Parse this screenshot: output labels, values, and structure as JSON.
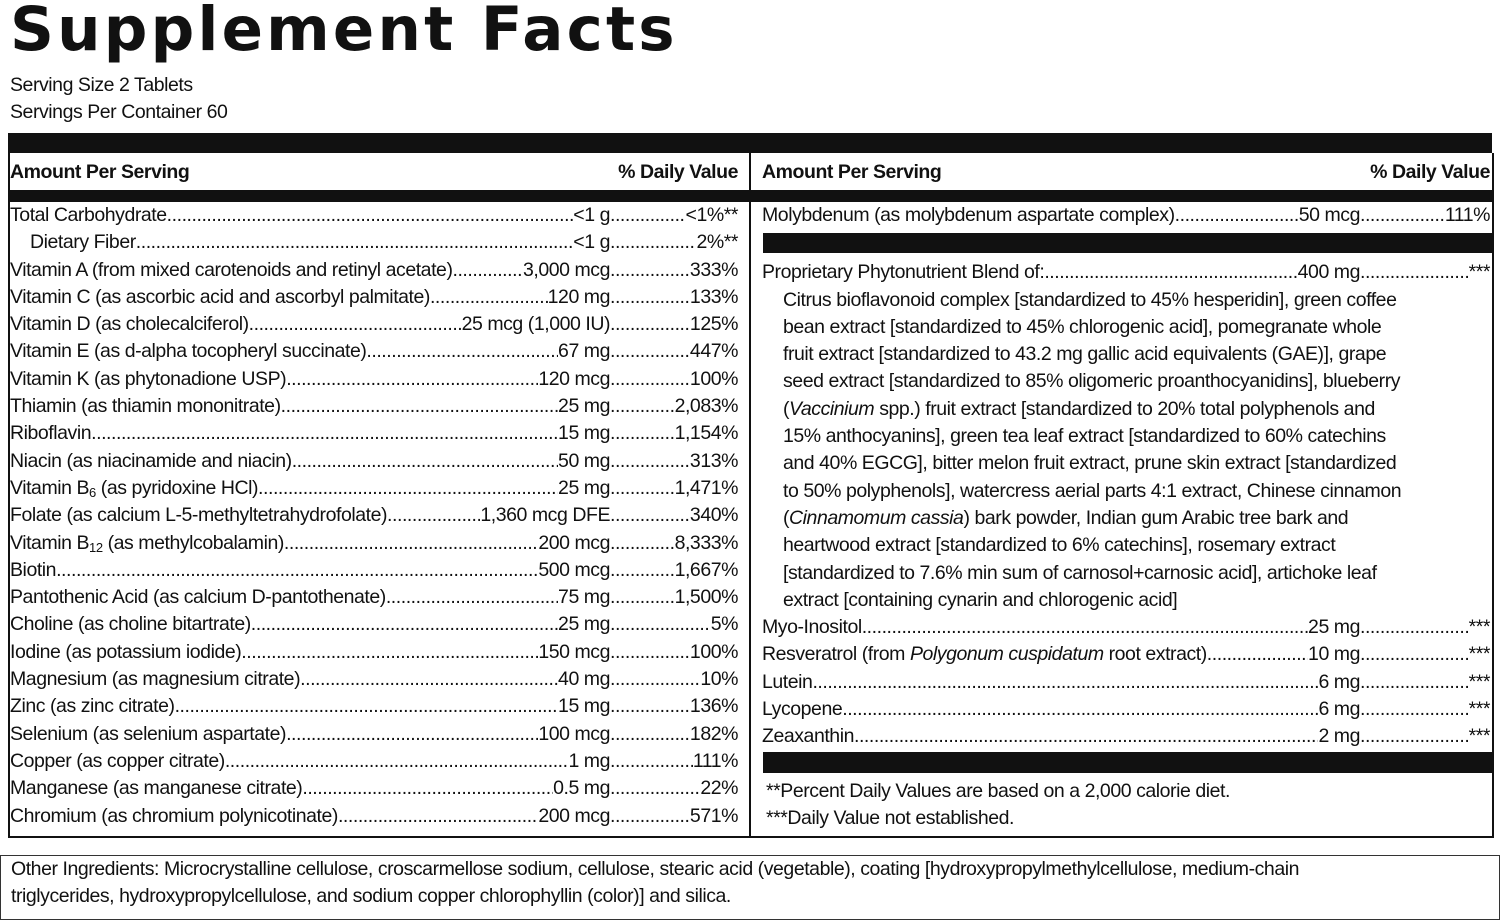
{
  "title": "Supplement Facts",
  "serving_size": "Serving Size 2 Tablets",
  "servings_per_container": "Servings Per Container 60",
  "left": {
    "header": {
      "amount": "Amount Per Serving",
      "dv": "% Daily Value"
    },
    "rows": [
      {
        "name": [
          "Total Carbohydrate"
        ],
        "amount": "<1 g",
        "dv": "<1%**"
      },
      {
        "name": [
          "Dietary Fiber"
        ],
        "amount": "<1 g",
        "dv": "2%**",
        "indent": true
      },
      {
        "name": [
          "Vitamin A (from mixed carotenoids and retinyl acetate)"
        ],
        "amount": "3,000 mcg",
        "dv": "333%"
      },
      {
        "name": [
          "Vitamin C (as ascorbic acid and ascorbyl palmitate)"
        ],
        "amount": "120 mg",
        "dv": "133%"
      },
      {
        "name": [
          "Vitamin D (as cholecalciferol)"
        ],
        "amount": "25 mcg (1,000 IU)",
        "dv": "125%"
      },
      {
        "name": [
          "Vitamin E (as d-alpha tocopheryl succinate)"
        ],
        "amount": "67 mg",
        "dv": "447%"
      },
      {
        "name": [
          "Vitamin K (as phytonadione USP)"
        ],
        "amount": "120 mcg",
        "dv": "100%"
      },
      {
        "name": [
          "Thiamin (as thiamin mononitrate)"
        ],
        "amount": "25 mg",
        "dv": "2,083%"
      },
      {
        "name": [
          "Riboflavin"
        ],
        "amount": "15 mg",
        "dv": "1,154%"
      },
      {
        "name": [
          "Niacin (as niacinamide and niacin)"
        ],
        "amount": "50 mg",
        "dv": "313%"
      },
      {
        "name": [
          "Vitamin B",
          {
            "sub": "6"
          },
          " (as pyridoxine HCl)"
        ],
        "amount": "25 mg",
        "dv": "1,471%"
      },
      {
        "name": [
          "Folate (as calcium L-5-methyltetrahydrofolate)"
        ],
        "amount": "1,360 mcg DFE",
        "dv": "340%"
      },
      {
        "name": [
          "Vitamin B",
          {
            "sub": "12"
          },
          " (as methylcobalamin)"
        ],
        "amount": "200 mcg",
        "dv": "8,333%"
      },
      {
        "name": [
          "Biotin"
        ],
        "amount": "500 mcg",
        "dv": "1,667%"
      },
      {
        "name": [
          "Pantothenic Acid (as calcium D-pantothenate)"
        ],
        "amount": "75 mg",
        "dv": "1,500%"
      },
      {
        "name": [
          "Choline (as choline bitartrate)"
        ],
        "amount": "25 mg",
        "dv": "5%"
      },
      {
        "name": [
          "Iodine (as potassium iodide)"
        ],
        "amount": "150 mcg",
        "dv": "100%"
      },
      {
        "name": [
          "Magnesium (as magnesium citrate)"
        ],
        "amount": "40 mg",
        "dv": "10%"
      },
      {
        "name": [
          "Zinc (as zinc citrate)"
        ],
        "amount": "15 mg",
        "dv": "136%"
      },
      {
        "name": [
          "Selenium (as selenium aspartate)"
        ],
        "amount": "100 mcg",
        "dv": "182%"
      },
      {
        "name": [
          "Copper (as copper citrate)"
        ],
        "amount": "1 mg",
        "dv": "111%"
      },
      {
        "name": [
          "Manganese (as manganese citrate)"
        ],
        "amount": "0.5 mg",
        "dv": "22%"
      },
      {
        "name": [
          "Chromium (as chromium polynicotinate)"
        ],
        "amount": "200 mcg",
        "dv": "571%"
      }
    ]
  },
  "right": {
    "header": {
      "amount": "Amount Per Serving",
      "dv": "% Daily Value"
    },
    "top_rows": [
      {
        "name": [
          "Molybdenum (as molybdenum aspartate complex)"
        ],
        "amount": "50 mcg",
        "dv": "111%"
      }
    ],
    "blend": {
      "name": [
        "Proprietary Phytonutrient Blend of:"
      ],
      "amount": "400 mg",
      "dv": "***",
      "lines": [
        [
          "Citrus bioflavonoid complex [standardized to 45% hesperidin], green coffee"
        ],
        [
          "bean extract [standardized to 45% chlorogenic acid], pomegranate whole"
        ],
        [
          "fruit extract [standardized to 43.2 mg gallic acid equivalents (GAE)], grape"
        ],
        [
          "seed extract [standardized to 85% oligomeric proanthocyanidins], blueberry"
        ],
        [
          "(",
          {
            "i": "Vaccinium"
          },
          " spp.) fruit extract [standardized to 20% total polyphenols and"
        ],
        [
          "15% anthocyanins], green tea leaf extract [standardized to 60% catechins"
        ],
        [
          "and 40% EGCG], bitter melon fruit extract, prune skin extract [standardized"
        ],
        [
          "to 50% polyphenols], watercress aerial parts 4:1 extract, Chinese cinnamon"
        ],
        [
          "(",
          {
            "i": "Cinnamomum cassia"
          },
          ") bark powder, Indian gum Arabic tree bark and"
        ],
        [
          "heartwood extract [standardized to 6% catechins], rosemary extract"
        ],
        [
          "[standardized to 7.6% min sum of carnosol+carnosic acid], artichoke leaf"
        ],
        [
          "extract [containing cynarin and chlorogenic acid]"
        ]
      ]
    },
    "rows": [
      {
        "name": [
          "Myo-Inositol"
        ],
        "amount": "25 mg",
        "dv": "***"
      },
      {
        "name": [
          "Resveratrol (from ",
          {
            "i": "Polygonum cuspidatum"
          },
          " root extract)"
        ],
        "amount": "10 mg",
        "dv": "***"
      },
      {
        "name": [
          "Lutein"
        ],
        "amount": "6 mg",
        "dv": "***"
      },
      {
        "name": [
          "Lycopene"
        ],
        "amount": "6 mg",
        "dv": "***"
      },
      {
        "name": [
          "Zeaxanthin"
        ],
        "amount": "2 mg",
        "dv": "***"
      }
    ],
    "footnotes": [
      "**Percent Daily Values are based on a 2,000 calorie diet.",
      "***Daily Value not established."
    ]
  },
  "other_ingredients": [
    "Other Ingredients: Microcrystalline cellulose, croscarmellose sodium, cellulose, stearic acid (vegetable), coating [hydroxypropylmethylcellulose, medium-chain",
    "triglycerides, hydroxypropylcellulose, and sodium copper chlorophyllin (color)] and silica."
  ]
}
